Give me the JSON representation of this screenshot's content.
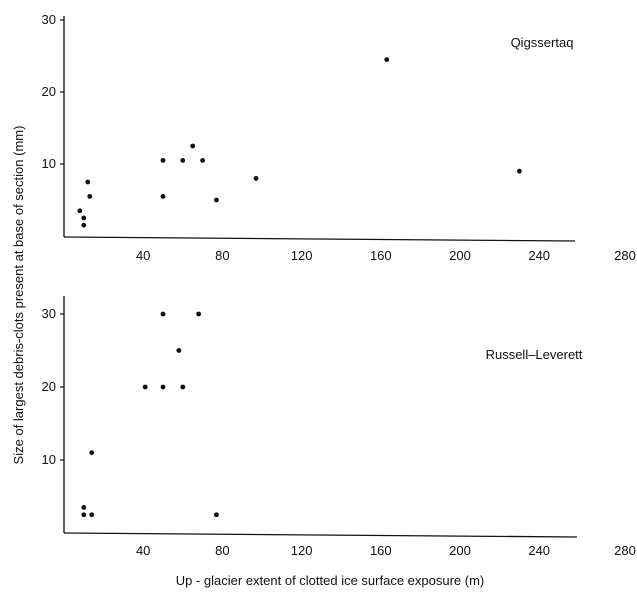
{
  "chart_data": [
    {
      "type": "scatter",
      "title": "",
      "panel_label": "Qigssertaq",
      "xlim": [
        0,
        260
      ],
      "ylim": [
        0,
        30
      ],
      "x_ticks": [
        "40",
        "80",
        "120",
        "160",
        "200",
        "240",
        "280"
      ],
      "y_ticks": [
        "10",
        "20",
        "30"
      ],
      "points": [
        {
          "x": 8,
          "y": 3.5
        },
        {
          "x": 10,
          "y": 2.5
        },
        {
          "x": 10,
          "y": 1.5
        },
        {
          "x": 12,
          "y": 7.5
        },
        {
          "x": 13,
          "y": 5.5
        },
        {
          "x": 50,
          "y": 10.5
        },
        {
          "x": 50,
          "y": 5.5
        },
        {
          "x": 60,
          "y": 10.5
        },
        {
          "x": 65,
          "y": 12.5
        },
        {
          "x": 70,
          "y": 10.5
        },
        {
          "x": 77,
          "y": 5
        },
        {
          "x": 97,
          "y": 8
        },
        {
          "x": 163,
          "y": 24.5
        },
        {
          "x": 230,
          "y": 9
        }
      ]
    },
    {
      "type": "scatter",
      "title": "",
      "panel_label": "Russell–Leverett",
      "xlim": [
        0,
        260
      ],
      "ylim": [
        0,
        30
      ],
      "x_ticks": [
        "40",
        "80",
        "120",
        "160",
        "200",
        "240",
        "280"
      ],
      "y_ticks": [
        "10",
        "20",
        "30"
      ],
      "points": [
        {
          "x": 10,
          "y": 3.5
        },
        {
          "x": 10,
          "y": 2.5
        },
        {
          "x": 14,
          "y": 2.5
        },
        {
          "x": 14,
          "y": 11
        },
        {
          "x": 41,
          "y": 20
        },
        {
          "x": 50,
          "y": 20
        },
        {
          "x": 50,
          "y": 30
        },
        {
          "x": 58,
          "y": 25
        },
        {
          "x": 60,
          "y": 20
        },
        {
          "x": 68,
          "y": 30
        },
        {
          "x": 77,
          "y": 2.5
        }
      ]
    }
  ],
  "ylabel": "Size of largest debris-clots present at base of section (mm)",
  "xlabel": "Up - glacier extent of clotted ice surface exposure (m)"
}
